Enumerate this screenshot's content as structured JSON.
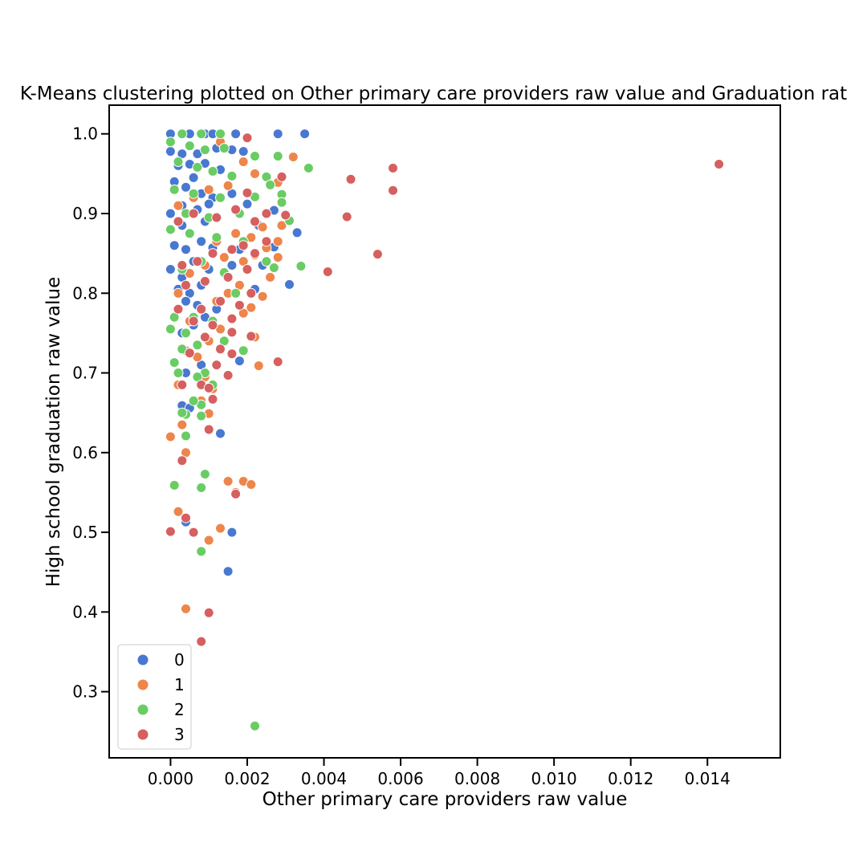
{
  "chart_data": {
    "type": "scatter",
    "title": "K-Means clustering plotted on Other primary care providers raw value and Graduation rat",
    "xlabel": "Other primary care providers raw value",
    "ylabel": "High school graduation raw value",
    "xlim": [
      -0.0016,
      0.0159
    ],
    "ylim": [
      0.217,
      1.036
    ],
    "xticks": [
      "0.000",
      "0.002",
      "0.004",
      "0.006",
      "0.008",
      "0.010",
      "0.012",
      "0.014"
    ],
    "yticks": [
      "0.3",
      "0.4",
      "0.5",
      "0.6",
      "0.7",
      "0.8",
      "0.9",
      "1.0"
    ],
    "grid": false,
    "legend_position": "lower-left",
    "series": [
      {
        "name": "0",
        "color": "#4878d0",
        "points": [
          [
            0.0,
            1.0
          ],
          [
            0.0005,
            1.0
          ],
          [
            0.0009,
            1.0
          ],
          [
            0.0011,
            1.0
          ],
          [
            0.0017,
            1.0
          ],
          [
            0.0028,
            1.0
          ],
          [
            0.0035,
            1.0
          ],
          [
            0.0,
            0.978
          ],
          [
            0.0003,
            0.975
          ],
          [
            0.0007,
            0.975
          ],
          [
            0.0012,
            0.982
          ],
          [
            0.0016,
            0.98
          ],
          [
            0.0019,
            0.978
          ],
          [
            0.0002,
            0.96
          ],
          [
            0.0005,
            0.962
          ],
          [
            0.0009,
            0.963
          ],
          [
            0.0013,
            0.955
          ],
          [
            0.0006,
            0.945
          ],
          [
            0.0001,
            0.94
          ],
          [
            0.0004,
            0.933
          ],
          [
            0.0008,
            0.925
          ],
          [
            0.0011,
            0.92
          ],
          [
            0.0016,
            0.925
          ],
          [
            0.0003,
            0.91
          ],
          [
            0.0007,
            0.905
          ],
          [
            0.001,
            0.912
          ],
          [
            0.002,
            0.912
          ],
          [
            0.0027,
            0.904
          ],
          [
            0.0,
            0.9
          ],
          [
            0.0006,
            0.9
          ],
          [
            0.0009,
            0.89
          ],
          [
            0.0003,
            0.885
          ],
          [
            0.0023,
            0.885
          ],
          [
            0.0033,
            0.876
          ],
          [
            0.0005,
            0.875
          ],
          [
            0.0008,
            0.865
          ],
          [
            0.0012,
            0.87
          ],
          [
            0.0001,
            0.86
          ],
          [
            0.0004,
            0.855
          ],
          [
            0.0011,
            0.857
          ],
          [
            0.0027,
            0.858
          ],
          [
            0.0018,
            0.855
          ],
          [
            0.0,
            0.83
          ],
          [
            0.0003,
            0.82
          ],
          [
            0.0006,
            0.84
          ],
          [
            0.001,
            0.83
          ],
          [
            0.0024,
            0.835
          ],
          [
            0.0031,
            0.811
          ],
          [
            0.0016,
            0.835
          ],
          [
            0.0008,
            0.81
          ],
          [
            0.0005,
            0.8
          ],
          [
            0.0002,
            0.805
          ],
          [
            0.0022,
            0.805
          ],
          [
            0.0004,
            0.79
          ],
          [
            0.0007,
            0.785
          ],
          [
            0.0012,
            0.78
          ],
          [
            0.0009,
            0.77
          ],
          [
            0.0006,
            0.76
          ],
          [
            0.0003,
            0.75
          ],
          [
            0.001,
            0.74
          ],
          [
            0.0004,
            0.7
          ],
          [
            0.0008,
            0.71
          ],
          [
            0.0018,
            0.715
          ],
          [
            0.0003,
            0.659
          ],
          [
            0.0005,
            0.656
          ],
          [
            0.0013,
            0.624
          ],
          [
            0.0004,
            0.513
          ],
          [
            0.0016,
            0.5
          ],
          [
            0.0015,
            0.451
          ]
        ]
      },
      {
        "name": "1",
        "color": "#ee854a",
        "points": [
          [
            0.0008,
            1.0
          ],
          [
            0.0032,
            0.971
          ],
          [
            0.0022,
            0.95
          ],
          [
            0.0019,
            0.965
          ],
          [
            0.0013,
            0.99
          ],
          [
            0.0028,
            0.939
          ],
          [
            0.0015,
            0.935
          ],
          [
            0.001,
            0.93
          ],
          [
            0.0006,
            0.92
          ],
          [
            0.0002,
            0.91
          ],
          [
            0.0029,
            0.885
          ],
          [
            0.0024,
            0.883
          ],
          [
            0.0021,
            0.87
          ],
          [
            0.0017,
            0.875
          ],
          [
            0.0012,
            0.865
          ],
          [
            0.0028,
            0.865
          ],
          [
            0.0025,
            0.857
          ],
          [
            0.0028,
            0.845
          ],
          [
            0.0022,
            0.848
          ],
          [
            0.0019,
            0.84
          ],
          [
            0.0014,
            0.845
          ],
          [
            0.0009,
            0.835
          ],
          [
            0.0005,
            0.825
          ],
          [
            0.0026,
            0.82
          ],
          [
            0.0018,
            0.81
          ],
          [
            0.0015,
            0.8
          ],
          [
            0.0024,
            0.796
          ],
          [
            0.0021,
            0.782
          ],
          [
            0.0012,
            0.79
          ],
          [
            0.0002,
            0.8
          ],
          [
            0.0008,
            0.78
          ],
          [
            0.0019,
            0.775
          ],
          [
            0.0005,
            0.765
          ],
          [
            0.0013,
            0.755
          ],
          [
            0.0022,
            0.745
          ],
          [
            0.001,
            0.74
          ],
          [
            0.0004,
            0.728
          ],
          [
            0.0023,
            0.709
          ],
          [
            0.0007,
            0.72
          ],
          [
            0.0002,
            0.685
          ],
          [
            0.0009,
            0.695
          ],
          [
            0.0011,
            0.68
          ],
          [
            0.001,
            0.649
          ],
          [
            0.0008,
            0.665
          ],
          [
            0.0003,
            0.635
          ],
          [
            0.0,
            0.62
          ],
          [
            0.0004,
            0.6
          ],
          [
            0.0015,
            0.564
          ],
          [
            0.0019,
            0.564
          ],
          [
            0.0021,
            0.56
          ],
          [
            0.0017,
            0.55
          ],
          [
            0.0002,
            0.526
          ],
          [
            0.0013,
            0.505
          ],
          [
            0.001,
            0.49
          ],
          [
            0.0004,
            0.404
          ]
        ]
      },
      {
        "name": "2",
        "color": "#6acc64",
        "points": [
          [
            0.0003,
            1.0
          ],
          [
            0.0008,
            1.0
          ],
          [
            0.0013,
            1.0
          ],
          [
            0.0,
            0.99
          ],
          [
            0.0005,
            0.985
          ],
          [
            0.0009,
            0.98
          ],
          [
            0.0014,
            0.982
          ],
          [
            0.0022,
            0.972
          ],
          [
            0.0028,
            0.972
          ],
          [
            0.0036,
            0.957
          ],
          [
            0.0002,
            0.965
          ],
          [
            0.0007,
            0.958
          ],
          [
            0.0011,
            0.953
          ],
          [
            0.0016,
            0.947
          ],
          [
            0.0025,
            0.946
          ],
          [
            0.0026,
            0.936
          ],
          [
            0.0001,
            0.93
          ],
          [
            0.0006,
            0.925
          ],
          [
            0.0013,
            0.92
          ],
          [
            0.0022,
            0.921
          ],
          [
            0.0029,
            0.924
          ],
          [
            0.0029,
            0.914
          ],
          [
            0.0004,
            0.9
          ],
          [
            0.001,
            0.895
          ],
          [
            0.0018,
            0.9
          ],
          [
            0.0031,
            0.891
          ],
          [
            0.0,
            0.88
          ],
          [
            0.0005,
            0.875
          ],
          [
            0.0012,
            0.87
          ],
          [
            0.0019,
            0.865
          ],
          [
            0.0025,
            0.84
          ],
          [
            0.0034,
            0.834
          ],
          [
            0.0027,
            0.832
          ],
          [
            0.0008,
            0.84
          ],
          [
            0.0003,
            0.83
          ],
          [
            0.0014,
            0.826
          ],
          [
            0.0017,
            0.8
          ],
          [
            0.0001,
            0.77
          ],
          [
            0.0006,
            0.77
          ],
          [
            0.0011,
            0.765
          ],
          [
            0.0,
            0.755
          ],
          [
            0.0004,
            0.75
          ],
          [
            0.0014,
            0.74
          ],
          [
            0.0007,
            0.735
          ],
          [
            0.0003,
            0.73
          ],
          [
            0.0019,
            0.728
          ],
          [
            0.0001,
            0.713
          ],
          [
            0.0009,
            0.7
          ],
          [
            0.0002,
            0.7
          ],
          [
            0.0007,
            0.695
          ],
          [
            0.0011,
            0.685
          ],
          [
            0.0008,
            0.66
          ],
          [
            0.0004,
            0.648
          ],
          [
            0.0006,
            0.665
          ],
          [
            0.0003,
            0.65
          ],
          [
            0.0008,
            0.646
          ],
          [
            0.0004,
            0.621
          ],
          [
            0.0009,
            0.573
          ],
          [
            0.0001,
            0.559
          ],
          [
            0.0008,
            0.556
          ],
          [
            0.0008,
            0.476
          ],
          [
            0.0022,
            0.257
          ]
        ]
      },
      {
        "name": "3",
        "color": "#d65f5f",
        "points": [
          [
            0.0143,
            0.962
          ],
          [
            0.0058,
            0.957
          ],
          [
            0.0058,
            0.929
          ],
          [
            0.0047,
            0.943
          ],
          [
            0.0046,
            0.896
          ],
          [
            0.0054,
            0.849
          ],
          [
            0.0041,
            0.827
          ],
          [
            0.0028,
            0.714
          ],
          [
            0.002,
            0.995
          ],
          [
            0.0029,
            0.946
          ],
          [
            0.002,
            0.926
          ],
          [
            0.003,
            0.898
          ],
          [
            0.0025,
            0.9
          ],
          [
            0.0022,
            0.89
          ],
          [
            0.0017,
            0.905
          ],
          [
            0.0012,
            0.895
          ],
          [
            0.0006,
            0.9
          ],
          [
            0.0002,
            0.89
          ],
          [
            0.0025,
            0.865
          ],
          [
            0.0022,
            0.85
          ],
          [
            0.0019,
            0.86
          ],
          [
            0.0016,
            0.855
          ],
          [
            0.0011,
            0.85
          ],
          [
            0.0007,
            0.84
          ],
          [
            0.0003,
            0.835
          ],
          [
            0.002,
            0.83
          ],
          [
            0.0015,
            0.82
          ],
          [
            0.0009,
            0.815
          ],
          [
            0.0004,
            0.81
          ],
          [
            0.0021,
            0.8
          ],
          [
            0.0018,
            0.785
          ],
          [
            0.0013,
            0.79
          ],
          [
            0.0008,
            0.78
          ],
          [
            0.0002,
            0.78
          ],
          [
            0.0016,
            0.768
          ],
          [
            0.0011,
            0.76
          ],
          [
            0.0006,
            0.765
          ],
          [
            0.0016,
            0.751
          ],
          [
            0.0021,
            0.746
          ],
          [
            0.0009,
            0.745
          ],
          [
            0.0013,
            0.73
          ],
          [
            0.0005,
            0.725
          ],
          [
            0.0016,
            0.724
          ],
          [
            0.0012,
            0.71
          ],
          [
            0.0015,
            0.697
          ],
          [
            0.0003,
            0.685
          ],
          [
            0.0008,
            0.685
          ],
          [
            0.001,
            0.681
          ],
          [
            0.0011,
            0.667
          ],
          [
            0.001,
            0.629
          ],
          [
            0.0003,
            0.59
          ],
          [
            0.0017,
            0.548
          ],
          [
            0.0004,
            0.518
          ],
          [
            0.0,
            0.501
          ],
          [
            0.0006,
            0.5
          ],
          [
            0.001,
            0.399
          ],
          [
            0.0008,
            0.363
          ]
        ]
      }
    ]
  }
}
